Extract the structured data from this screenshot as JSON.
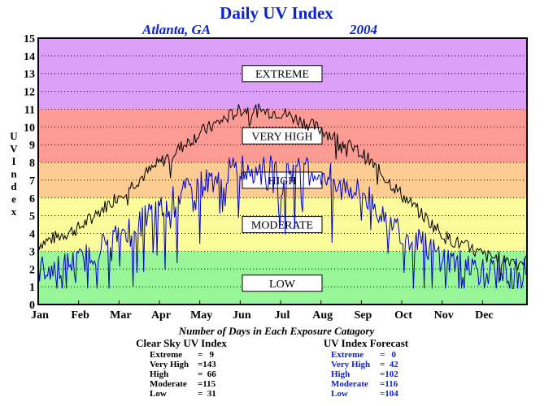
{
  "chart_data": {
    "type": "line",
    "title": "Daily UV Index",
    "subtitle_left": "Atlanta, GA",
    "subtitle_right": "2004",
    "ylabel": "U V I n d e x",
    "xlabel": "",
    "ylim": [
      0,
      15
    ],
    "y_ticks": [
      "0",
      "1",
      "2",
      "3",
      "4",
      "5",
      "6",
      "7",
      "8",
      "9",
      "10",
      "11",
      "12",
      "13",
      "14",
      "15"
    ],
    "x_ticks": [
      "Jan",
      "Feb",
      "Mar",
      "Apr",
      "May",
      "Jun",
      "Jul",
      "Aug",
      "Sep",
      "Oct",
      "Nov",
      "Dec"
    ],
    "grid": true,
    "bands": [
      {
        "label": "LOW",
        "from": 0,
        "to": 3,
        "color": "#98f598"
      },
      {
        "label": "MODERATE",
        "from": 3,
        "to": 6,
        "color": "#fbfb9c"
      },
      {
        "label": "HIGH",
        "from": 6,
        "to": 8,
        "color": "#fdcc92"
      },
      {
        "label": "VERY HIGH",
        "from": 8,
        "to": 11,
        "color": "#fc9a94"
      },
      {
        "label": "EXTREME",
        "from": 11,
        "to": 15,
        "color": "#dca0f8"
      }
    ],
    "series": [
      {
        "name": "Clear Sky UV Index",
        "color": "#000000",
        "monthly_values": [
          3.4,
          4.3,
          6.2,
          8.0,
          9.7,
          11.0,
          10.8,
          9.8,
          8.4,
          6.0,
          3.8,
          2.7,
          2.4
        ]
      },
      {
        "name": "UV Index Forecast",
        "color": "#0000cc",
        "monthly_values": [
          2.0,
          2.4,
          4.0,
          5.5,
          6.8,
          7.8,
          7.6,
          7.4,
          6.2,
          4.0,
          2.6,
          1.9,
          1.8
        ]
      }
    ],
    "summary": {
      "caption": "Number of Days in Each Exposure Catagory",
      "clear_sky": {
        "title": "Clear Sky UV Index",
        "color": "#000000",
        "rows": [
          {
            "label": "Extreme",
            "value": "=   9"
          },
          {
            "label": "Very High",
            "value": "=143"
          },
          {
            "label": "High",
            "value": "=  66"
          },
          {
            "label": "Moderate",
            "value": "=115"
          },
          {
            "label": "Low",
            "value": "=  31"
          }
        ]
      },
      "forecast": {
        "title": "UV Index Forecast",
        "color": "#0a1fd6",
        "rows": [
          {
            "label": "Extreme",
            "value": "=   0"
          },
          {
            "label": "Very High",
            "value": "=  42"
          },
          {
            "label": "High",
            "value": "=102"
          },
          {
            "label": "Moderate",
            "value": "=116"
          },
          {
            "label": "Low",
            "value": "=104"
          }
        ]
      }
    }
  }
}
